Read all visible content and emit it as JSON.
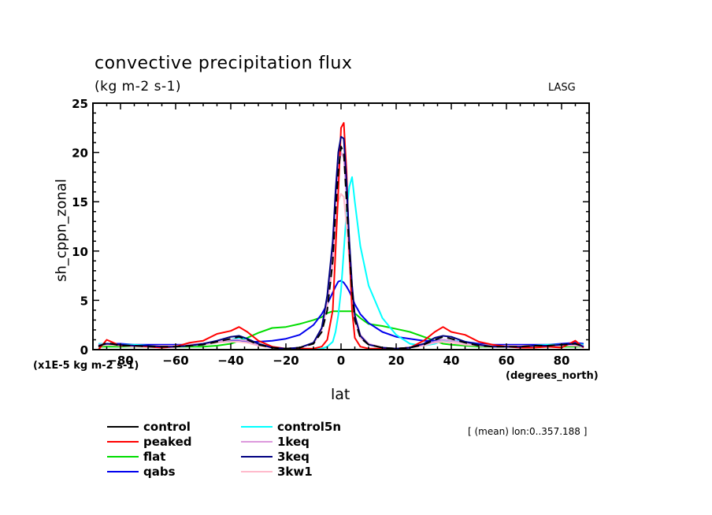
{
  "chart_data": {
    "type": "line",
    "title": "convective precipitation flux",
    "subtitle": "(kg m-2 s-1)",
    "corner_label": "LASG",
    "xlabel": "lat",
    "x_units": "(degrees_north)",
    "ylabel": "sh_cppn_zonal",
    "y_units": "(x1E-5 kg m-2 s-1)",
    "footnote": "[ (mean) lon:0..357.188 ]",
    "xlim": [
      -90,
      90
    ],
    "ylim": [
      0,
      25
    ],
    "x_ticks": [
      -80,
      -60,
      -40,
      -20,
      0,
      20,
      40,
      60,
      80
    ],
    "y_ticks": [
      0,
      5,
      10,
      15,
      20,
      25
    ],
    "grid": false,
    "legend_position": "bottom-left",
    "x": [
      -88,
      -85,
      -80,
      -75,
      -70,
      -65,
      -60,
      -55,
      -50,
      -45,
      -40,
      -37,
      -34,
      -30,
      -25,
      -20,
      -15,
      -10,
      -7,
      -5,
      -3,
      -2,
      -1,
      0,
      1,
      2,
      3,
      4,
      5,
      7,
      10,
      15,
      20,
      25,
      30,
      34,
      37,
      40,
      45,
      50,
      55,
      60,
      65,
      70,
      75,
      80,
      85,
      88
    ],
    "series": [
      {
        "name": "control",
        "color": "#000000",
        "values": [
          0.3,
          0.7,
          0.4,
          0.4,
          0.3,
          0.3,
          0.3,
          0.4,
          0.5,
          0.8,
          1.1,
          1.3,
          1.0,
          0.5,
          0.2,
          0.1,
          0.2,
          0.6,
          1.8,
          4.0,
          9.0,
          14.0,
          18.0,
          20.6,
          20.0,
          15.0,
          10.0,
          6.0,
          3.0,
          1.2,
          0.5,
          0.2,
          0.1,
          0.2,
          0.5,
          1.0,
          1.3,
          1.1,
          0.7,
          0.4,
          0.3,
          0.3,
          0.3,
          0.4,
          0.4,
          0.5,
          0.6,
          0.3
        ]
      },
      {
        "name": "peaked",
        "color": "#ff0000",
        "values": [
          0.0,
          1.0,
          0.4,
          0.4,
          0.3,
          0.2,
          0.3,
          0.7,
          0.9,
          1.6,
          1.9,
          2.3,
          1.8,
          0.9,
          0.3,
          0.1,
          0.1,
          0.1,
          0.3,
          1.0,
          4.0,
          10.0,
          16.0,
          22.5,
          23.0,
          18.0,
          10.0,
          4.0,
          1.2,
          0.3,
          0.1,
          0.1,
          0.1,
          0.2,
          0.9,
          1.8,
          2.3,
          1.8,
          1.5,
          0.8,
          0.5,
          0.3,
          0.2,
          0.2,
          0.3,
          0.2,
          0.9,
          0.2
        ]
      },
      {
        "name": "flat",
        "color": "#00dd00",
        "values": [
          0.3,
          0.3,
          0.3,
          0.3,
          0.3,
          0.3,
          0.3,
          0.3,
          0.3,
          0.4,
          0.6,
          0.9,
          1.2,
          1.7,
          2.2,
          2.3,
          2.6,
          3.0,
          3.3,
          3.7,
          3.9,
          3.9,
          3.9,
          3.9,
          3.9,
          3.9,
          3.9,
          3.9,
          3.7,
          3.2,
          2.6,
          2.4,
          2.1,
          1.8,
          1.3,
          0.9,
          0.6,
          0.5,
          0.4,
          0.3,
          0.3,
          0.3,
          0.3,
          0.3,
          0.3,
          0.3,
          0.3,
          0.3
        ]
      },
      {
        "name": "qabs",
        "color": "#0000ee",
        "values": [
          0.6,
          0.6,
          0.6,
          0.5,
          0.5,
          0.5,
          0.5,
          0.5,
          0.6,
          0.8,
          0.9,
          0.9,
          0.8,
          0.8,
          0.9,
          1.1,
          1.5,
          2.5,
          3.6,
          4.6,
          5.8,
          6.4,
          6.9,
          7.0,
          6.8,
          6.4,
          5.9,
          5.3,
          4.6,
          3.6,
          2.7,
          1.8,
          1.3,
          1.1,
          0.9,
          0.9,
          1.0,
          0.9,
          0.8,
          0.6,
          0.5,
          0.5,
          0.5,
          0.5,
          0.5,
          0.6,
          0.7,
          0.6
        ]
      },
      {
        "name": "control5n",
        "color": "#00ffff",
        "values": [
          0.6,
          0.6,
          0.5,
          0.5,
          0.4,
          0.4,
          0.4,
          0.4,
          0.5,
          0.7,
          1.0,
          1.2,
          1.1,
          0.6,
          0.2,
          0.1,
          0.0,
          0.0,
          0.1,
          0.3,
          0.8,
          1.8,
          3.5,
          6.0,
          10.0,
          14.0,
          16.5,
          17.5,
          15.0,
          10.5,
          6.5,
          3.2,
          1.5,
          0.6,
          0.4,
          0.6,
          0.9,
          0.9,
          0.8,
          0.5,
          0.4,
          0.4,
          0.4,
          0.4,
          0.5,
          0.5,
          0.6,
          0.5
        ]
      },
      {
        "name": "1keq",
        "color": "#dd99dd",
        "values": [
          0.5,
          0.6,
          0.5,
          0.4,
          0.4,
          0.4,
          0.4,
          0.5,
          0.6,
          0.8,
          1.0,
          1.0,
          0.9,
          0.5,
          0.2,
          0.1,
          0.2,
          0.7,
          2.2,
          5.0,
          10.0,
          15.0,
          18.5,
          20.0,
          19.5,
          15.5,
          11.0,
          6.5,
          3.5,
          1.5,
          0.6,
          0.2,
          0.1,
          0.2,
          0.5,
          0.8,
          1.0,
          0.9,
          0.7,
          0.5,
          0.4,
          0.4,
          0.4,
          0.4,
          0.4,
          0.5,
          0.5,
          0.4
        ]
      },
      {
        "name": "3keq",
        "color": "#000080",
        "values": [
          0.4,
          0.6,
          0.5,
          0.4,
          0.4,
          0.3,
          0.3,
          0.4,
          0.6,
          0.9,
          1.3,
          1.4,
          1.1,
          0.6,
          0.2,
          0.1,
          0.2,
          0.7,
          2.2,
          5.5,
          11.0,
          16.0,
          20.0,
          21.6,
          21.4,
          17.0,
          11.0,
          6.5,
          3.5,
          1.4,
          0.5,
          0.2,
          0.1,
          0.2,
          0.6,
          1.2,
          1.4,
          1.3,
          0.8,
          0.5,
          0.3,
          0.3,
          0.3,
          0.4,
          0.4,
          0.5,
          0.6,
          0.3
        ]
      },
      {
        "name": "3kw1",
        "color": "#ffbbcc",
        "values": [
          0.3,
          0.5,
          0.4,
          0.3,
          0.3,
          0.3,
          0.3,
          0.4,
          0.5,
          0.7,
          0.8,
          0.8,
          0.7,
          0.4,
          0.2,
          0.1,
          0.2,
          0.6,
          2.0,
          4.5,
          8.5,
          12.5,
          15.0,
          15.8,
          15.5,
          12.5,
          9.0,
          5.5,
          3.0,
          1.2,
          0.5,
          0.2,
          0.1,
          0.2,
          0.4,
          0.7,
          0.8,
          0.7,
          0.5,
          0.4,
          0.3,
          0.3,
          0.3,
          0.3,
          0.4,
          0.4,
          0.4,
          0.3
        ]
      }
    ]
  }
}
